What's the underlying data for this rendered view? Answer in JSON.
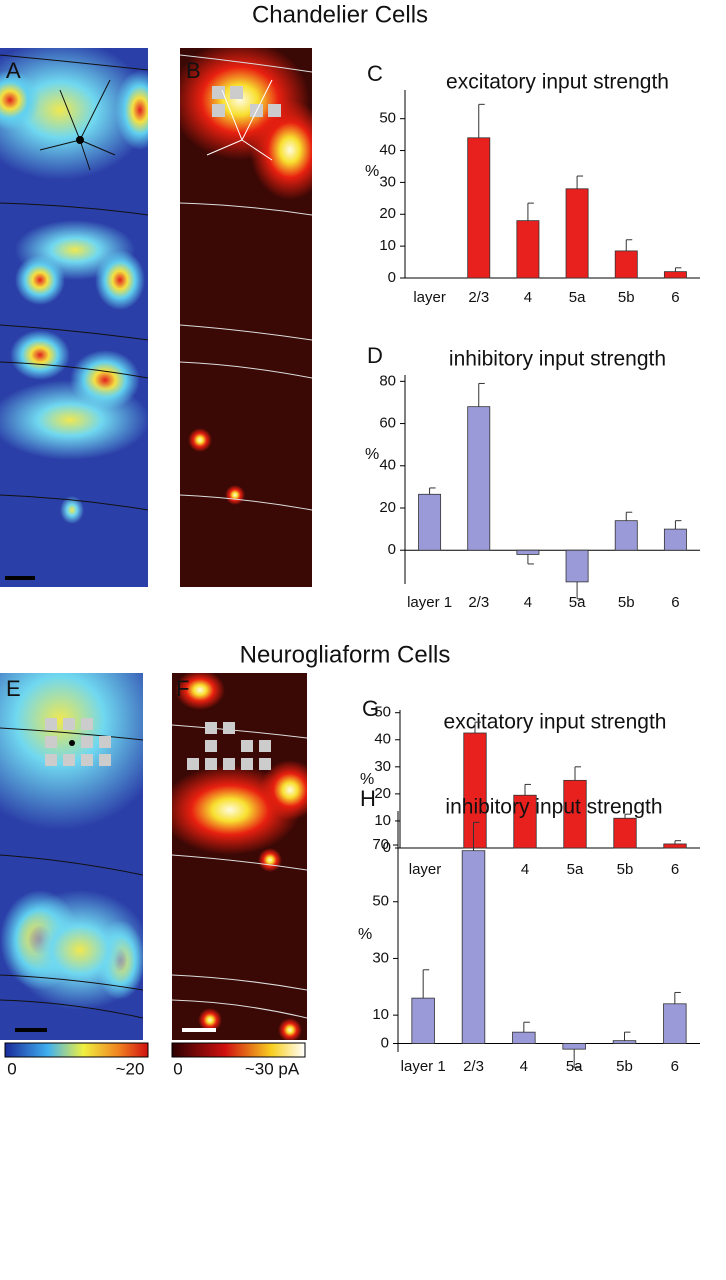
{
  "sections": [
    "Chandelier Cells",
    "Neurogliaform Cells"
  ],
  "maps": [
    {
      "letter": "A"
    },
    {
      "letter": "B"
    },
    {
      "letter": "E"
    },
    {
      "letter": "F"
    }
  ],
  "colorbars": [
    {
      "min_label": "0",
      "max_label": "~20"
    },
    {
      "min_label": "0",
      "max_label": "~30 pA"
    }
  ],
  "chart_data": [
    {
      "type": "bar",
      "letter": "C",
      "title": "excitatory input strength",
      "y_label": "%",
      "categories": [
        "layer",
        "2/3",
        "4",
        "5a",
        "5b",
        "6"
      ],
      "values": [
        null,
        44,
        18,
        28,
        8.5,
        2
      ],
      "errors": [
        null,
        10.5,
        5.5,
        4,
        3.5,
        1.2
      ],
      "color": "#e8201e",
      "ylim": [
        0,
        59
      ],
      "yticks": [
        0,
        10,
        20,
        30,
        40,
        50
      ]
    },
    {
      "type": "bar",
      "letter": "D",
      "title": "inhibitory input strength",
      "y_label": "%",
      "categories": [
        "layer 1",
        "2/3",
        "4",
        "5a",
        "5b",
        "6"
      ],
      "values": [
        26.5,
        68,
        -2,
        -15,
        14,
        10
      ],
      "errors": [
        3,
        11,
        4.5,
        8,
        4,
        4
      ],
      "color": "#9a9ad8",
      "ylim": [
        -16,
        83
      ],
      "yticks": [
        0,
        20,
        40,
        60,
        80
      ]
    },
    {
      "type": "bar",
      "letter": "G",
      "title": "excitatory input strength",
      "y_label": "%",
      "categories": [
        "layer",
        "2/3",
        "4",
        "5a",
        "5b",
        "6"
      ],
      "values": [
        null,
        42.5,
        19.5,
        25,
        11,
        1.5
      ],
      "errors": [
        null,
        4,
        4,
        5,
        1.5,
        1.2
      ],
      "color": "#e8201e",
      "ylim": [
        0,
        51
      ],
      "yticks": [
        0,
        10,
        20,
        30,
        40,
        50
      ]
    },
    {
      "type": "bar",
      "letter": "H",
      "title": "inhibitory input strength",
      "y_label": "%",
      "categories": [
        "layer 1",
        "2/3",
        "4",
        "5a",
        "5b",
        "6"
      ],
      "values": [
        16,
        68,
        4,
        -2,
        1,
        14
      ],
      "errors": [
        10,
        10,
        3.5,
        6.5,
        3,
        4
      ],
      "color": "#9a9ad8",
      "ylim": [
        -3,
        82
      ],
      "yticks": [
        0,
        10,
        30,
        50,
        70
      ]
    }
  ]
}
